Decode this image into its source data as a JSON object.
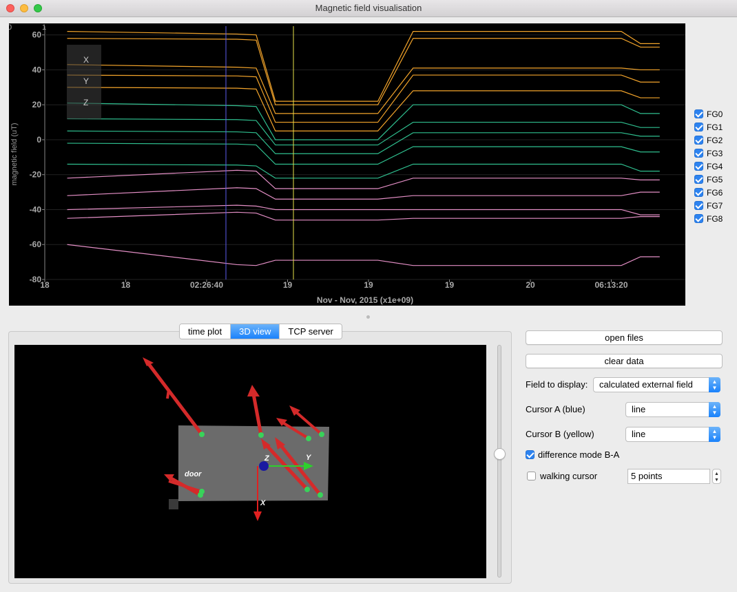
{
  "window": {
    "title": "Magnetic field visualisation"
  },
  "plot": {
    "ylabel": "magnetic field (uT)",
    "xlabel": "Nov - Nov, 2015 (x1e+09)",
    "corner_labels": [
      "0",
      "1"
    ],
    "y_ticks": [
      "60",
      "40",
      "20",
      "0",
      "-20",
      "-40",
      "-60",
      "-80"
    ],
    "x_ticks": [
      "18",
      "18",
      "02:26:40",
      "19",
      "19",
      "19",
      "20",
      "06:13:20"
    ],
    "axis_box_labels": [
      "X",
      "Y",
      "Z"
    ],
    "colors": {
      "orange": "#f4a52b",
      "green": "#2fbf8f",
      "pink": "#e48fc6",
      "cursor_a": "#5b5bf0",
      "cursor_b": "#e8e24a"
    }
  },
  "chart_data": {
    "type": "line",
    "title": "",
    "xlabel": "Nov - Nov, 2015 (x1e+09)",
    "ylabel": "magnetic field (uT)",
    "ylim": [
      -80,
      65
    ],
    "x_tick_labels": [
      "18",
      "18",
      "02:26:40",
      "19",
      "19",
      "19",
      "20",
      "06:13:20"
    ],
    "series": [
      {
        "color": "#f4a52b",
        "values": [
          62,
          60,
          22,
          22,
          62,
          55
        ]
      },
      {
        "color": "#f4a52b",
        "values": [
          58,
          57,
          20,
          20,
          58,
          53
        ]
      },
      {
        "color": "#f4a52b",
        "values": [
          43,
          41,
          15,
          15,
          41,
          40
        ]
      },
      {
        "color": "#f4a52b",
        "values": [
          37,
          36,
          10,
          10,
          37,
          33
        ]
      },
      {
        "color": "#f4a52b",
        "values": [
          30,
          29,
          5,
          5,
          28,
          24
        ]
      },
      {
        "color": "#2fbf8f",
        "values": [
          21,
          19,
          0,
          0,
          20,
          15
        ]
      },
      {
        "color": "#2fbf8f",
        "values": [
          12,
          11,
          -3,
          -3,
          10,
          7
        ]
      },
      {
        "color": "#2fbf8f",
        "values": [
          5,
          4,
          -8,
          -8,
          4,
          2
        ]
      },
      {
        "color": "#2fbf8f",
        "values": [
          -2,
          -3,
          -14,
          -14,
          -4,
          -7
        ]
      },
      {
        "color": "#2fbf8f",
        "values": [
          -14,
          -15,
          -22,
          -22,
          -14,
          -18
        ]
      },
      {
        "color": "#e48fc6",
        "values": [
          -22,
          -18,
          -28,
          -28,
          -22,
          -23
        ]
      },
      {
        "color": "#e48fc6",
        "values": [
          -32,
          -28,
          -34,
          -34,
          -32,
          -30
        ]
      },
      {
        "color": "#e48fc6",
        "values": [
          -40,
          -38,
          -40,
          -40,
          -40,
          -43
        ]
      },
      {
        "color": "#e48fc6",
        "values": [
          -45,
          -42,
          -46,
          -46,
          -45,
          -44
        ]
      },
      {
        "color": "#e48fc6",
        "values": [
          -60,
          -72,
          -69,
          -69,
          -72,
          -67
        ]
      }
    ],
    "cursors": {
      "a_label": "Cursor A (blue)",
      "b_label": "Cursor B (yellow)"
    }
  },
  "legend": {
    "items": [
      {
        "label": "FG0",
        "checked": true
      },
      {
        "label": "FG1",
        "checked": true
      },
      {
        "label": "FG2",
        "checked": true
      },
      {
        "label": "FG3",
        "checked": true
      },
      {
        "label": "FG4",
        "checked": true
      },
      {
        "label": "FG5",
        "checked": true
      },
      {
        "label": "FG6",
        "checked": true
      },
      {
        "label": "FG7",
        "checked": true
      },
      {
        "label": "FG8",
        "checked": true
      }
    ]
  },
  "tabs": [
    {
      "label": "time plot",
      "active": false
    },
    {
      "label": "3D view",
      "active": true
    },
    {
      "label": "TCP server",
      "active": false
    }
  ],
  "view3d": {
    "door_label": "door",
    "axis_labels": {
      "x": "X",
      "y": "Y",
      "z": "Z"
    },
    "colors": {
      "floor": "#6b6b6b",
      "arrow": "#d42a2a",
      "sensor": "#39d25a",
      "x_axis": "#e02020",
      "y_axis": "#2cd02c",
      "z_axis": "#1a1aa0"
    }
  },
  "controls": {
    "open_files": "open files",
    "clear_data": "clear data",
    "field_label": "Field to display:",
    "field_value": "calculated external field",
    "cursor_a_label": "Cursor A (blue)",
    "cursor_a_value": "line",
    "cursor_b_label": "Cursor B (yellow)",
    "cursor_b_value": "line",
    "difference_label": "difference mode B-A",
    "difference_checked": true,
    "walking_label": "walking cursor",
    "walking_checked": false,
    "walking_points": "5 points"
  }
}
